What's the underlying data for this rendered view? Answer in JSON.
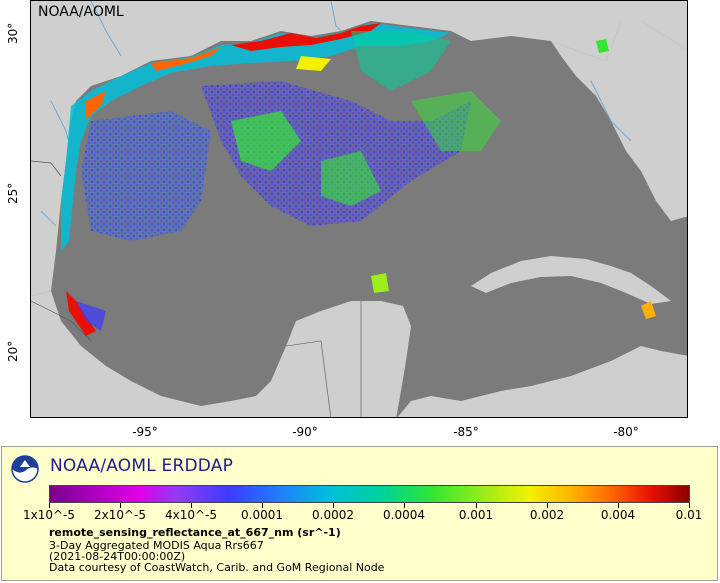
{
  "map": {
    "watermark": "NOAA/AOML",
    "y_ticks": [
      "30°",
      "25°",
      "20°"
    ],
    "x_ticks": [
      "-95°",
      "-90°",
      "-85°",
      "-80°"
    ]
  },
  "legend": {
    "title": "NOAA/AOML ERDDAP",
    "colorbar_labels": [
      "1x10^-5",
      "2x10^-5",
      "4x10^-5",
      "0.0001",
      "0.0002",
      "0.0004",
      "0.001",
      "0.002",
      "0.004",
      "0.01"
    ],
    "variable": "remote_sensing_reflectance_at_667_nm (sr^-1)",
    "dataset": "3-Day Aggregated MODIS Aqua Rrs667",
    "time": "(2021-08-24T00:00:00Z)",
    "credit": "Data courtesy of CoastWatch, Carib. and GoM Regional Node"
  },
  "colors": {
    "ocean": "#7b7b7b",
    "land": "#cfcfcf",
    "rivers": "#6fa9d8",
    "legend_bg": "#ffffcc",
    "title_blue": "#1d1d8f"
  }
}
